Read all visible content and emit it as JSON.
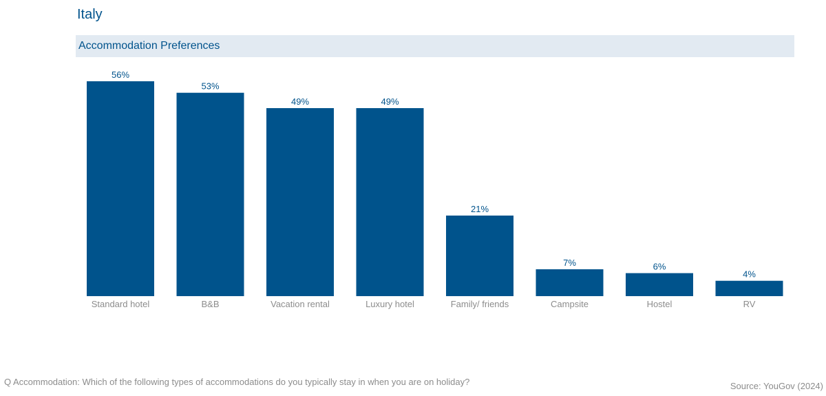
{
  "header": {
    "country": "Italy",
    "subtitle": "Accommodation Preferences"
  },
  "footer": {
    "question": "Q Accommodation: Which of the following types of accommodations do you typically stay in when you are on holiday?",
    "source": "Source: YouGov (2024)"
  },
  "colors": {
    "bar": "#00538c",
    "subtitle_band": "#e2eaf2",
    "muted_text": "#8c8c8c"
  },
  "chart_data": {
    "type": "bar",
    "title": "Accommodation Preferences",
    "xlabel": "",
    "ylabel": "",
    "categories": [
      "Standard hotel",
      "B&B",
      "Vacation rental",
      "Luxury hotel",
      "Family/ friends",
      "Campsite",
      "Hostel",
      "RV"
    ],
    "values": [
      56,
      53,
      49,
      49,
      21,
      7,
      6,
      4
    ],
    "value_labels": [
      "56%",
      "53%",
      "49%",
      "49%",
      "21%",
      "7%",
      "6%",
      "4%"
    ],
    "ylim": [
      0,
      56
    ],
    "grid": false,
    "legend": "none"
  }
}
